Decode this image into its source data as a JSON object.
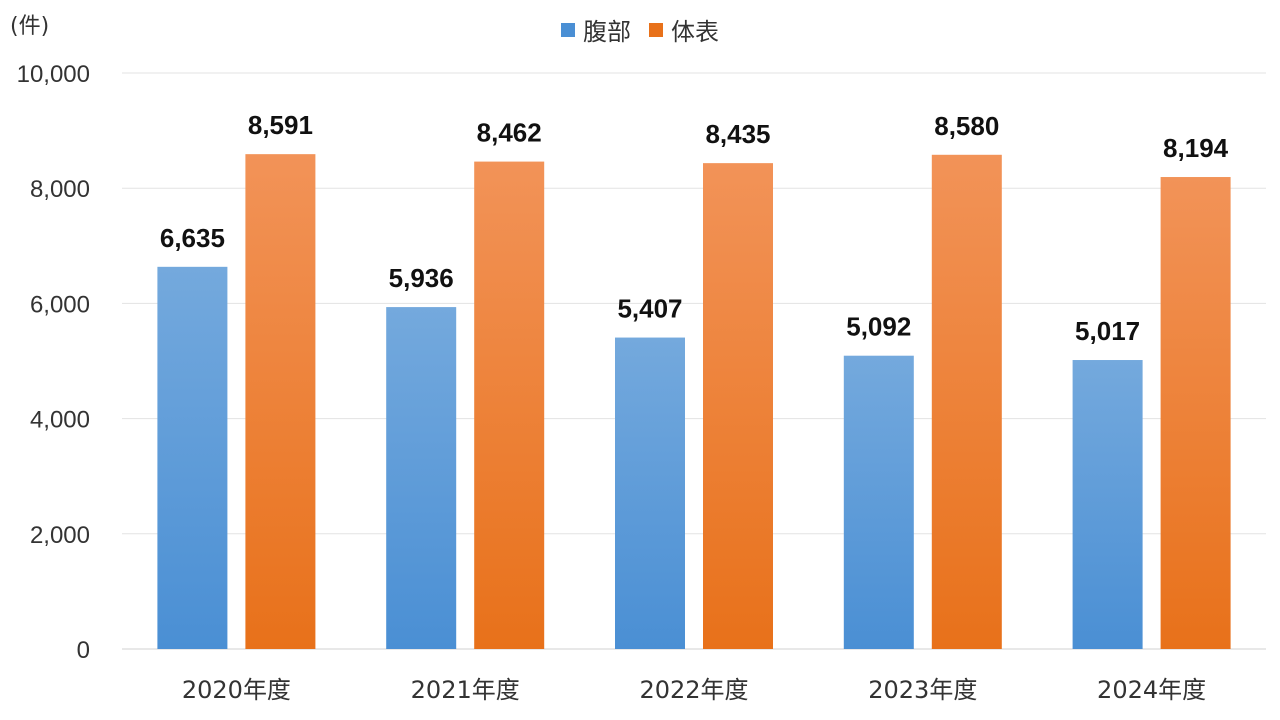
{
  "chart_data": {
    "type": "bar",
    "unit_label": "(件)",
    "categories": [
      "2020年度",
      "2021年度",
      "2022年度",
      "2023年度",
      "2024年度"
    ],
    "series": [
      {
        "name": "腹部",
        "values": [
          6635,
          5936,
          5407,
          5092,
          5017
        ],
        "color": "#4a8fd4",
        "color_top": "#74a9dd"
      },
      {
        "name": "体表",
        "values": [
          8591,
          8462,
          8435,
          8580,
          8194
        ],
        "color": "#e8711a",
        "color_top": "#f29358"
      }
    ],
    "data_labels": [
      [
        "6,635",
        "5,936",
        "5,407",
        "5,092",
        "5,017"
      ],
      [
        "8,591",
        "8,462",
        "8,435",
        "8,580",
        "8,194"
      ]
    ],
    "yticks": [
      0,
      2000,
      4000,
      6000,
      8000,
      10000
    ],
    "ytick_labels": [
      "0",
      "2,000",
      "4,000",
      "6,000",
      "8,000",
      "10,000"
    ],
    "ylim": [
      0,
      10000
    ],
    "grid": true,
    "legend_position": "top-center"
  }
}
